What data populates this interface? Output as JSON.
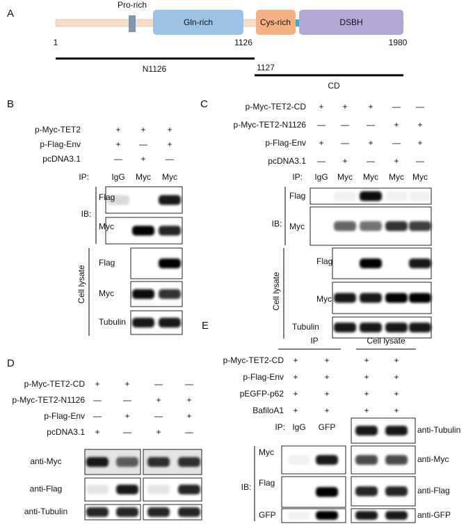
{
  "panel_a": {
    "label": "A",
    "domains": [
      "Pro-rich",
      "Gln-rich",
      "Cys-rich",
      "DSBH"
    ],
    "positions": [
      1,
      1126,
      1980,
      1127
    ],
    "fragments": [
      "N1126",
      "CD"
    ]
  },
  "panel_b": {
    "label": "B",
    "treatments": [
      {
        "name": "p-Myc-TET2",
        "signs": [
          "+",
          "+",
          "+"
        ]
      },
      {
        "name": "p-Flag-Env",
        "signs": [
          "+",
          "—",
          "+"
        ]
      },
      {
        "name": "pcDNA3.1",
        "signs": [
          "—",
          "+",
          "—"
        ]
      }
    ],
    "ip_label": "IP:",
    "ip_lanes": [
      "IgG",
      "Myc",
      "Myc"
    ],
    "ib_label": "IB:",
    "ib_blots": [
      "Flag",
      "Myc"
    ],
    "lysate_label": "Cell lysate",
    "lysate_blots": [
      "Flag",
      "Myc",
      "Tubulin"
    ]
  },
  "panel_c": {
    "label": "C",
    "treatments": [
      {
        "name": "p-Myc-TET2-CD",
        "signs": [
          "+",
          "+",
          "+",
          "—",
          "—"
        ]
      },
      {
        "name": "p-Myc-TET2-N1126",
        "signs": [
          "—",
          "—",
          "—",
          "+",
          "+"
        ]
      },
      {
        "name": "p-Flag-Env",
        "signs": [
          "+",
          "—",
          "+",
          "—",
          "+"
        ]
      },
      {
        "name": "pcDNA3.1",
        "signs": [
          "—",
          "+",
          "—",
          "+",
          "—"
        ]
      }
    ],
    "ip_label": "IP:",
    "ip_lanes": [
      "IgG",
      "Myc",
      "Myc",
      "Myc",
      "Myc"
    ],
    "ib_label": "IB:",
    "ib_blots": [
      "Flag",
      "Myc"
    ],
    "lysate_label": "Cell lysate",
    "lysate_blots": [
      "Flag",
      "Myc",
      "Tubulin"
    ]
  },
  "panel_d": {
    "label": "D",
    "treatments": [
      {
        "name": "p-Myc-TET2-CD",
        "signs": [
          "+",
          "+",
          "—",
          "—"
        ]
      },
      {
        "name": "p-Myc-TET2-N1126",
        "signs": [
          "—",
          "—",
          "+",
          "+"
        ]
      },
      {
        "name": "p-Flag-Env",
        "signs": [
          "—",
          "+",
          "—",
          "+"
        ]
      },
      {
        "name": "pcDNA3.1",
        "signs": [
          "+",
          "—",
          "+",
          "—"
        ]
      }
    ],
    "blots": [
      "anti-Myc",
      "anti-Flag",
      "anti-Tubulin"
    ]
  },
  "panel_e": {
    "label": "E",
    "headers": [
      "IP",
      "Cell lysate"
    ],
    "treatments": [
      {
        "name": "p-Myc-TET2-CD",
        "signs": [
          "+",
          "+",
          "+",
          "+"
        ]
      },
      {
        "name": "p-Flag-Env",
        "signs": [
          "+",
          "+",
          "+",
          "+"
        ]
      },
      {
        "name": "pEGFP-p62",
        "signs": [
          "+",
          "+",
          "+",
          "+"
        ]
      },
      {
        "name": "BafiloA1",
        "signs": [
          "+",
          "+",
          "+",
          "+"
        ]
      }
    ],
    "ip_label": "IP:",
    "ip_lanes": [
      "IgG",
      "GFP"
    ],
    "ib_label": "IB:",
    "ib_blots": [
      "Myc",
      "Flag",
      "GFP"
    ],
    "lysate_blots": [
      "anti-Tubulin",
      "anti-Myc",
      "anti-Flag",
      "anti-GFP"
    ]
  }
}
